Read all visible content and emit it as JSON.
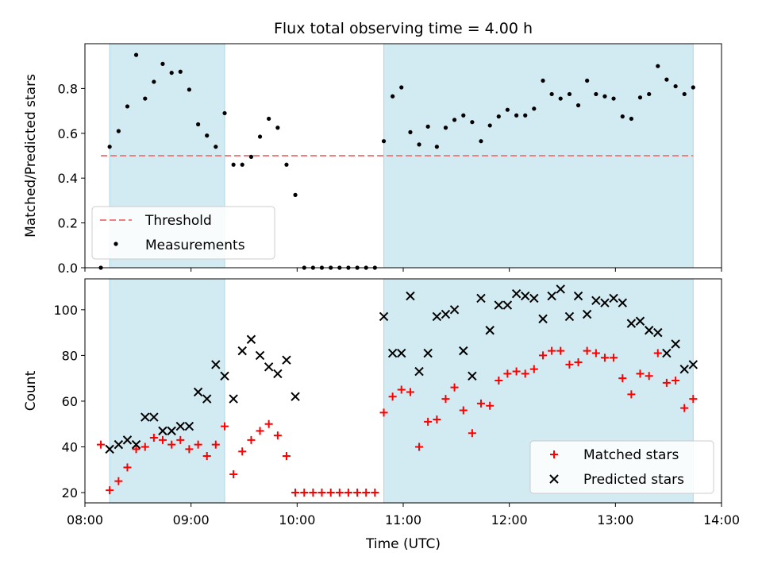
{
  "title": "Flux total observing time = 4.00 h",
  "colors": {
    "shade": "#add8e6",
    "threshold": "#f08080",
    "measure": "#000000",
    "matched": "#ff0000",
    "predicted": "#000000"
  },
  "chart_data": [
    {
      "type": "scatter",
      "panel": "top",
      "ylabel": "Matched/Predicted stars",
      "xlabel": "",
      "ylim": [
        0,
        1.0
      ],
      "yticks": [
        0.0,
        0.2,
        0.4,
        0.6,
        0.8
      ],
      "ytick_labels": [
        "0.0",
        "0.2",
        "0.4",
        "0.6",
        "0.8"
      ],
      "xlim": [
        8.0,
        14.0
      ],
      "shaded_intervals": [
        [
          8.233,
          9.317
        ],
        [
          10.817,
          13.733
        ]
      ],
      "threshold": {
        "value": 0.5,
        "xrange": [
          8.15,
          13.733
        ],
        "label": "Threshold"
      },
      "legend": {
        "placement": "lower-left",
        "entries": [
          "Threshold",
          "Measurements"
        ]
      },
      "series": [
        {
          "name": "Measurements",
          "points": [
            [
              8.15,
              0.0
            ],
            [
              8.233,
              0.54
            ],
            [
              8.317,
              0.61
            ],
            [
              8.4,
              0.72
            ],
            [
              8.483,
              0.95
            ],
            [
              8.567,
              0.755
            ],
            [
              8.65,
              0.83
            ],
            [
              8.733,
              0.91
            ],
            [
              8.817,
              0.87
            ],
            [
              8.9,
              0.875
            ],
            [
              8.983,
              0.795
            ],
            [
              9.067,
              0.64
            ],
            [
              9.15,
              0.59
            ],
            [
              9.233,
              0.54
            ],
            [
              9.317,
              0.69
            ],
            [
              9.4,
              0.46
            ],
            [
              9.483,
              0.46
            ],
            [
              9.567,
              0.495
            ],
            [
              9.65,
              0.585
            ],
            [
              9.733,
              0.665
            ],
            [
              9.817,
              0.625
            ],
            [
              9.9,
              0.46
            ],
            [
              9.983,
              0.325
            ],
            [
              10.067,
              0.0
            ],
            [
              10.15,
              0.0
            ],
            [
              10.233,
              0.0
            ],
            [
              10.317,
              0.0
            ],
            [
              10.4,
              0.0
            ],
            [
              10.483,
              0.0
            ],
            [
              10.567,
              0.0
            ],
            [
              10.65,
              0.0
            ],
            [
              10.733,
              0.0
            ],
            [
              10.817,
              0.565
            ],
            [
              10.9,
              0.765
            ],
            [
              10.983,
              0.805
            ],
            [
              11.067,
              0.605
            ],
            [
              11.15,
              0.55
            ],
            [
              11.233,
              0.63
            ],
            [
              11.317,
              0.54
            ],
            [
              11.4,
              0.625
            ],
            [
              11.483,
              0.66
            ],
            [
              11.567,
              0.68
            ],
            [
              11.65,
              0.65
            ],
            [
              11.733,
              0.565
            ],
            [
              11.817,
              0.635
            ],
            [
              11.9,
              0.675
            ],
            [
              11.983,
              0.705
            ],
            [
              12.067,
              0.68
            ],
            [
              12.15,
              0.68
            ],
            [
              12.233,
              0.71
            ],
            [
              12.317,
              0.835
            ],
            [
              12.4,
              0.775
            ],
            [
              12.483,
              0.755
            ],
            [
              12.567,
              0.775
            ],
            [
              12.65,
              0.725
            ],
            [
              12.733,
              0.835
            ],
            [
              12.817,
              0.775
            ],
            [
              12.9,
              0.765
            ],
            [
              12.983,
              0.755
            ],
            [
              13.067,
              0.675
            ],
            [
              13.15,
              0.665
            ],
            [
              13.233,
              0.76
            ],
            [
              13.317,
              0.775
            ],
            [
              13.4,
              0.9
            ],
            [
              13.483,
              0.84
            ],
            [
              13.567,
              0.81
            ],
            [
              13.65,
              0.775
            ],
            [
              13.733,
              0.805
            ]
          ]
        }
      ]
    },
    {
      "type": "scatter",
      "panel": "bottom",
      "ylabel": "Count",
      "xlabel": "Time (UTC)",
      "ylim": [
        15.5,
        113.5
      ],
      "yticks": [
        20,
        40,
        60,
        80,
        100
      ],
      "ytick_labels": [
        "20",
        "40",
        "60",
        "80",
        "100"
      ],
      "xlim": [
        8.0,
        14.0
      ],
      "xticks": [
        8,
        9,
        10,
        11,
        12,
        13,
        14
      ],
      "xtick_labels": [
        "08:00",
        "09:00",
        "10:00",
        "11:00",
        "12:00",
        "13:00",
        "14:00"
      ],
      "shaded_intervals": [
        [
          8.233,
          9.317
        ],
        [
          10.817,
          13.733
        ]
      ],
      "legend": {
        "placement": "lower-right",
        "entries": [
          "Matched stars",
          "Predicted stars"
        ]
      },
      "series": [
        {
          "name": "Matched stars",
          "marker": "plus",
          "points": [
            [
              8.15,
              41
            ],
            [
              8.233,
              21
            ],
            [
              8.317,
              25
            ],
            [
              8.4,
              31
            ],
            [
              8.483,
              39
            ],
            [
              8.567,
              40
            ],
            [
              8.65,
              44
            ],
            [
              8.733,
              43
            ],
            [
              8.817,
              41
            ],
            [
              8.9,
              43
            ],
            [
              8.983,
              39
            ],
            [
              9.067,
              41
            ],
            [
              9.15,
              36
            ],
            [
              9.233,
              41
            ],
            [
              9.317,
              49
            ],
            [
              9.4,
              28
            ],
            [
              9.483,
              38
            ],
            [
              9.567,
              43
            ],
            [
              9.65,
              47
            ],
            [
              9.733,
              50
            ],
            [
              9.817,
              45
            ],
            [
              9.9,
              36
            ],
            [
              9.983,
              20
            ],
            [
              10.067,
              20
            ],
            [
              10.15,
              20
            ],
            [
              10.233,
              20
            ],
            [
              10.317,
              20
            ],
            [
              10.4,
              20
            ],
            [
              10.483,
              20
            ],
            [
              10.567,
              20
            ],
            [
              10.65,
              20
            ],
            [
              10.733,
              20
            ],
            [
              10.817,
              55
            ],
            [
              10.9,
              62
            ],
            [
              10.983,
              65
            ],
            [
              11.067,
              64
            ],
            [
              11.15,
              40
            ],
            [
              11.233,
              51
            ],
            [
              11.317,
              52
            ],
            [
              11.4,
              61
            ],
            [
              11.483,
              66
            ],
            [
              11.567,
              56
            ],
            [
              11.65,
              46
            ],
            [
              11.733,
              59
            ],
            [
              11.817,
              58
            ],
            [
              11.9,
              69
            ],
            [
              11.983,
              72
            ],
            [
              12.067,
              73
            ],
            [
              12.15,
              72
            ],
            [
              12.233,
              74
            ],
            [
              12.317,
              80
            ],
            [
              12.4,
              82
            ],
            [
              12.483,
              82
            ],
            [
              12.567,
              76
            ],
            [
              12.65,
              77
            ],
            [
              12.733,
              82
            ],
            [
              12.817,
              81
            ],
            [
              12.9,
              79
            ],
            [
              12.983,
              79
            ],
            [
              13.067,
              70
            ],
            [
              13.15,
              63
            ],
            [
              13.233,
              72
            ],
            [
              13.317,
              71
            ],
            [
              13.4,
              81
            ],
            [
              13.483,
              68
            ],
            [
              13.567,
              69
            ],
            [
              13.65,
              57
            ],
            [
              13.733,
              61
            ]
          ]
        },
        {
          "name": "Predicted stars",
          "marker": "x",
          "points": [
            [
              8.233,
              39
            ],
            [
              8.317,
              41
            ],
            [
              8.4,
              43
            ],
            [
              8.483,
              41
            ],
            [
              8.567,
              53
            ],
            [
              8.65,
              53
            ],
            [
              8.733,
              47
            ],
            [
              8.817,
              47
            ],
            [
              8.9,
              49
            ],
            [
              8.983,
              49
            ],
            [
              9.067,
              64
            ],
            [
              9.15,
              61
            ],
            [
              9.233,
              76
            ],
            [
              9.317,
              71
            ],
            [
              9.4,
              61
            ],
            [
              9.483,
              82
            ],
            [
              9.567,
              87
            ],
            [
              9.65,
              80
            ],
            [
              9.733,
              75
            ],
            [
              9.817,
              72
            ],
            [
              9.9,
              78
            ],
            [
              9.983,
              62
            ],
            [
              10.817,
              97
            ],
            [
              10.9,
              81
            ],
            [
              10.983,
              81
            ],
            [
              11.067,
              106
            ],
            [
              11.15,
              73
            ],
            [
              11.233,
              81
            ],
            [
              11.317,
              97
            ],
            [
              11.4,
              98
            ],
            [
              11.483,
              100
            ],
            [
              11.567,
              82
            ],
            [
              11.65,
              71
            ],
            [
              11.733,
              105
            ],
            [
              11.817,
              91
            ],
            [
              11.9,
              102
            ],
            [
              11.983,
              102
            ],
            [
              12.067,
              107
            ],
            [
              12.15,
              106
            ],
            [
              12.233,
              105
            ],
            [
              12.317,
              96
            ],
            [
              12.4,
              106
            ],
            [
              12.483,
              109
            ],
            [
              12.567,
              97
            ],
            [
              12.65,
              106
            ],
            [
              12.733,
              98
            ],
            [
              12.817,
              104
            ],
            [
              12.9,
              103
            ],
            [
              12.983,
              105
            ],
            [
              13.067,
              103
            ],
            [
              13.15,
              94
            ],
            [
              13.233,
              95
            ],
            [
              13.317,
              91
            ],
            [
              13.4,
              90
            ],
            [
              13.483,
              81
            ],
            [
              13.567,
              85
            ],
            [
              13.65,
              74
            ],
            [
              13.733,
              76
            ]
          ]
        }
      ]
    }
  ]
}
